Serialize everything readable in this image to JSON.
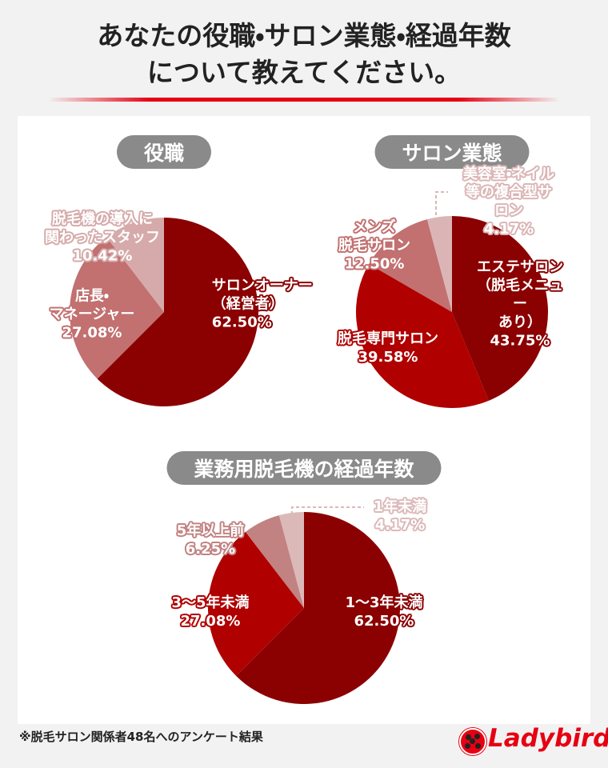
{
  "title": "あなたの役職・サロン業態・経過年数\nについて教えてください。",
  "chart_data": [
    {
      "type": "pie",
      "title": "役職",
      "categories": [
        "サロンオーナー\n（経営者）",
        "店長・\nマネージャー",
        "脱毛機の導入に\n関わったスタッフ"
      ],
      "values": [
        62.5,
        27.08,
        10.42
      ],
      "value_labels": [
        "62.50%",
        "27.08%",
        "10.42%"
      ],
      "colors": [
        "#8b0000",
        "#c27070",
        "#d6aaaa"
      ]
    },
    {
      "type": "pie",
      "title": "サロン業態",
      "categories": [
        "エステサロン\n（脱毛メニュー\nあり）",
        "脱毛専門サロン",
        "メンズ\n脱毛サロン",
        "美容室・ネイル\n等の複合型サロン"
      ],
      "values": [
        43.75,
        39.58,
        12.5,
        4.17
      ],
      "value_labels": [
        "43.75%",
        "39.58%",
        "12.50%",
        "4.17%"
      ],
      "colors": [
        "#8b0000",
        "#b00000",
        "#c27070",
        "#dbb5b5"
      ]
    },
    {
      "type": "pie",
      "title": "業務用脱毛機の経過年数",
      "categories": [
        "1〜3年未満",
        "3〜5年未満",
        "5年以上前",
        "1年未満"
      ],
      "values": [
        62.5,
        27.08,
        6.25,
        4.17
      ],
      "value_labels": [
        "62.50%",
        "27.08%",
        "6.25%",
        "4.17%"
      ],
      "colors": [
        "#8b0000",
        "#b00000",
        "#c28282",
        "#dcb9b9"
      ]
    }
  ],
  "footnote": "※脱毛サロン関係者48名へのアンケート結果",
  "logo": "Ladybird"
}
